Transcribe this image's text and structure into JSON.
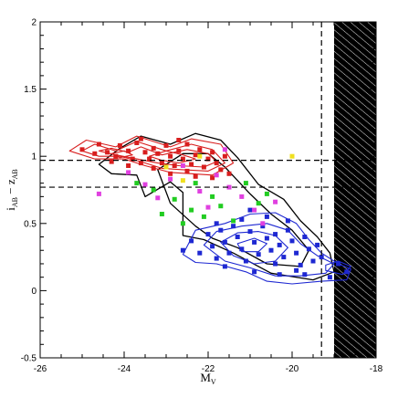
{
  "chart_data": {
    "type": "scatter",
    "title": "",
    "xlabel_main": "M",
    "xlabel_sub": "V",
    "ylabel_parts": [
      "i",
      "AB",
      " − z",
      "AB"
    ],
    "xlim": [
      -26,
      -18
    ],
    "ylim": [
      -0.5,
      2
    ],
    "x_ticks": [
      -26,
      -24,
      -22,
      -20,
      -18
    ],
    "y_ticks": [
      -0.5,
      0,
      0.5,
      1,
      1.5,
      2
    ],
    "x_tick_labels": [
      "-26",
      "-24",
      "-22",
      "-20",
      "-18"
    ],
    "y_tick_labels": [
      "-0.5",
      "0",
      "0.5",
      "1",
      "1.5",
      "2"
    ],
    "grid": false,
    "reference_lines": {
      "horizontal_dashed_y": [
        0.97,
        0.77
      ],
      "vertical_dashed_x": -19.3
    },
    "hatched_region": {
      "x_from": -19.0,
      "x_to": -18.0,
      "style": "black with white diagonal hatching"
    },
    "colors": {
      "red": "#d81e1e",
      "blue": "#1e28d2",
      "black": "#000000",
      "magenta": "#e040e0",
      "green": "#22cc22",
      "yellow": "#f0e020"
    },
    "contours": [
      {
        "group": "black",
        "level": 1,
        "points": [
          [
            -24.3,
            0.87
          ],
          [
            -24.6,
            0.94
          ],
          [
            -24.1,
            1.06
          ],
          [
            -23.6,
            1.15
          ],
          [
            -22.9,
            1.09
          ],
          [
            -22.3,
            1.17
          ],
          [
            -21.7,
            1.12
          ],
          [
            -21.3,
            0.99
          ],
          [
            -20.8,
            0.79
          ],
          [
            -20.2,
            0.68
          ],
          [
            -19.8,
            0.52
          ],
          [
            -19.4,
            0.4
          ],
          [
            -19.1,
            0.28
          ],
          [
            -19.0,
            0.14
          ],
          [
            -19.5,
            0.08
          ],
          [
            -20.5,
            0.13
          ],
          [
            -21.4,
            0.28
          ],
          [
            -22.1,
            0.38
          ],
          [
            -22.6,
            0.41
          ],
          [
            -22.6,
            0.73
          ],
          [
            -22.9,
            0.81
          ],
          [
            -23.5,
            0.7
          ],
          [
            -23.7,
            0.86
          ],
          [
            -24.3,
            0.87
          ]
        ]
      },
      {
        "group": "black",
        "level": 2,
        "points": [
          [
            -22.9,
            0.65
          ],
          [
            -23.2,
            0.9
          ],
          [
            -22.6,
            1.02
          ],
          [
            -22.0,
            1.02
          ],
          [
            -21.6,
            0.92
          ],
          [
            -21.0,
            0.72
          ],
          [
            -20.5,
            0.57
          ],
          [
            -20.0,
            0.45
          ],
          [
            -19.6,
            0.3
          ],
          [
            -19.8,
            0.18
          ],
          [
            -20.6,
            0.2
          ],
          [
            -21.3,
            0.32
          ],
          [
            -21.9,
            0.39
          ],
          [
            -22.3,
            0.48
          ],
          [
            -22.9,
            0.65
          ]
        ]
      },
      {
        "group": "red",
        "level": 1,
        "points": [
          [
            -25.3,
            1.04
          ],
          [
            -24.9,
            1.12
          ],
          [
            -24.2,
            1.07
          ],
          [
            -23.7,
            1.15
          ],
          [
            -22.9,
            1.07
          ],
          [
            -22.4,
            1.13
          ],
          [
            -21.7,
            1.09
          ],
          [
            -21.4,
            0.95
          ],
          [
            -21.9,
            0.86
          ],
          [
            -22.4,
            0.87
          ],
          [
            -22.9,
            0.88
          ],
          [
            -23.5,
            0.93
          ],
          [
            -24.0,
            0.98
          ],
          [
            -24.7,
            0.98
          ],
          [
            -25.3,
            1.04
          ]
        ]
      },
      {
        "group": "red",
        "level": 2,
        "points": [
          [
            -25.0,
            1.04
          ],
          [
            -24.7,
            1.09
          ],
          [
            -24.2,
            1.04
          ],
          [
            -23.7,
            1.11
          ],
          [
            -23.0,
            1.04
          ],
          [
            -22.4,
            1.09
          ],
          [
            -21.9,
            1.05
          ],
          [
            -21.6,
            0.95
          ],
          [
            -22.0,
            0.89
          ],
          [
            -22.6,
            0.9
          ],
          [
            -23.1,
            0.91
          ],
          [
            -23.6,
            0.96
          ],
          [
            -24.1,
            1.0
          ],
          [
            -24.6,
            1.0
          ],
          [
            -25.0,
            1.04
          ]
        ]
      },
      {
        "group": "red",
        "level": 3,
        "points": [
          [
            -24.6,
            1.04
          ],
          [
            -24.3,
            1.06
          ],
          [
            -23.9,
            1.03
          ],
          [
            -23.6,
            1.07
          ],
          [
            -23.1,
            1.01
          ],
          [
            -22.5,
            1.05
          ],
          [
            -22.0,
            1.02
          ],
          [
            -21.8,
            0.96
          ],
          [
            -22.1,
            0.92
          ],
          [
            -22.7,
            0.93
          ],
          [
            -23.2,
            0.95
          ],
          [
            -23.7,
            0.98
          ],
          [
            -24.2,
            1.01
          ],
          [
            -24.6,
            1.04
          ]
        ]
      },
      {
        "group": "red",
        "level": 4,
        "points": [
          [
            -23.4,
            1.0
          ],
          [
            -23.0,
            1.04
          ],
          [
            -22.6,
            1.01
          ],
          [
            -22.3,
            0.98
          ],
          [
            -22.7,
            0.95
          ],
          [
            -23.1,
            0.97
          ],
          [
            -23.4,
            1.0
          ]
        ]
      },
      {
        "group": "red",
        "level": 5,
        "points": [
          [
            -24.3,
            1.02
          ],
          [
            -24.0,
            1.04
          ],
          [
            -23.8,
            1.01
          ],
          [
            -24.1,
            0.99
          ],
          [
            -24.3,
            1.02
          ]
        ]
      },
      {
        "group": "blue",
        "level": 1,
        "points": [
          [
            -22.6,
            0.27
          ],
          [
            -22.3,
            0.45
          ],
          [
            -21.6,
            0.5
          ],
          [
            -21.0,
            0.57
          ],
          [
            -20.4,
            0.58
          ],
          [
            -19.9,
            0.5
          ],
          [
            -19.6,
            0.38
          ],
          [
            -19.3,
            0.28
          ],
          [
            -18.9,
            0.2
          ],
          [
            -18.6,
            0.16
          ],
          [
            -18.7,
            0.08
          ],
          [
            -19.3,
            0.07
          ],
          [
            -20.0,
            0.05
          ],
          [
            -20.6,
            0.07
          ],
          [
            -21.1,
            0.14
          ],
          [
            -21.8,
            0.2
          ],
          [
            -22.3,
            0.21
          ],
          [
            -22.6,
            0.27
          ]
        ]
      },
      {
        "group": "blue",
        "level": 2,
        "points": [
          [
            -22.1,
            0.34
          ],
          [
            -21.8,
            0.44
          ],
          [
            -21.2,
            0.48
          ],
          [
            -20.6,
            0.5
          ],
          [
            -20.1,
            0.45
          ],
          [
            -19.8,
            0.35
          ],
          [
            -19.4,
            0.26
          ],
          [
            -19.0,
            0.2
          ],
          [
            -19.2,
            0.13
          ],
          [
            -19.8,
            0.11
          ],
          [
            -20.4,
            0.11
          ],
          [
            -21.0,
            0.17
          ],
          [
            -21.6,
            0.22
          ],
          [
            -22.1,
            0.34
          ]
        ]
      },
      {
        "group": "blue",
        "level": 3,
        "points": [
          [
            -21.7,
            0.36
          ],
          [
            -21.3,
            0.43
          ],
          [
            -20.8,
            0.44
          ],
          [
            -20.4,
            0.41
          ],
          [
            -20.1,
            0.32
          ],
          [
            -20.4,
            0.22
          ],
          [
            -20.9,
            0.2
          ],
          [
            -21.4,
            0.26
          ],
          [
            -21.7,
            0.36
          ]
        ]
      },
      {
        "group": "blue",
        "level": 4,
        "points": [
          [
            -21.3,
            0.35
          ],
          [
            -20.9,
            0.39
          ],
          [
            -20.6,
            0.35
          ],
          [
            -20.8,
            0.29
          ],
          [
            -21.2,
            0.29
          ],
          [
            -21.3,
            0.35
          ]
        ]
      },
      {
        "group": "blue",
        "level": 5,
        "points": [
          [
            -19.2,
            0.19
          ],
          [
            -18.9,
            0.22
          ],
          [
            -18.6,
            0.18
          ],
          [
            -18.8,
            0.12
          ],
          [
            -19.2,
            0.15
          ],
          [
            -19.2,
            0.19
          ]
        ]
      }
    ],
    "series": [
      {
        "color": "red",
        "points": [
          [
            -25.0,
            1.05
          ],
          [
            -24.7,
            1.02
          ],
          [
            -24.6,
            1.09
          ],
          [
            -24.4,
            1.03
          ],
          [
            -24.2,
            1.0
          ],
          [
            -24.1,
            1.08
          ],
          [
            -23.9,
            1.04
          ],
          [
            -23.8,
            0.98
          ],
          [
            -23.7,
            1.1
          ],
          [
            -23.6,
            0.95
          ],
          [
            -23.5,
            1.03
          ],
          [
            -23.4,
            0.98
          ],
          [
            -23.3,
            1.06
          ],
          [
            -23.2,
            1.02
          ],
          [
            -23.1,
            0.95
          ],
          [
            -23.0,
            1.08
          ],
          [
            -22.9,
            1.0
          ],
          [
            -22.8,
            0.93
          ],
          [
            -22.7,
            1.04
          ],
          [
            -22.6,
            0.98
          ],
          [
            -22.5,
            1.09
          ],
          [
            -22.4,
            0.94
          ],
          [
            -22.3,
            1.01
          ],
          [
            -22.2,
            1.05
          ],
          [
            -22.1,
            0.92
          ],
          [
            -22.0,
            0.98
          ],
          [
            -21.9,
            1.03
          ],
          [
            -21.8,
            0.95
          ],
          [
            -21.7,
            0.9
          ],
          [
            -21.6,
            1.0
          ],
          [
            -21.5,
            0.87
          ],
          [
            -23.3,
            0.91
          ],
          [
            -23.9,
            0.93
          ],
          [
            -22.9,
            0.87
          ],
          [
            -22.3,
            0.85
          ],
          [
            -21.9,
            0.84
          ],
          [
            -24.3,
            0.96
          ],
          [
            -22.7,
            1.12
          ],
          [
            -23.6,
            1.13
          ],
          [
            -22.5,
            0.89
          ]
        ]
      },
      {
        "color": "blue",
        "points": [
          [
            -22.4,
            0.37
          ],
          [
            -22.2,
            0.28
          ],
          [
            -22.0,
            0.42
          ],
          [
            -21.9,
            0.33
          ],
          [
            -21.8,
            0.24
          ],
          [
            -21.7,
            0.45
          ],
          [
            -21.6,
            0.36
          ],
          [
            -21.5,
            0.28
          ],
          [
            -21.4,
            0.48
          ],
          [
            -21.3,
            0.4
          ],
          [
            -21.2,
            0.31
          ],
          [
            -21.1,
            0.22
          ],
          [
            -21.0,
            0.44
          ],
          [
            -20.9,
            0.36
          ],
          [
            -20.8,
            0.27
          ],
          [
            -20.7,
            0.48
          ],
          [
            -20.6,
            0.39
          ],
          [
            -20.5,
            0.3
          ],
          [
            -20.4,
            0.42
          ],
          [
            -20.3,
            0.34
          ],
          [
            -20.2,
            0.25
          ],
          [
            -20.1,
            0.45
          ],
          [
            -20.0,
            0.37
          ],
          [
            -19.9,
            0.28
          ],
          [
            -19.8,
            0.19
          ],
          [
            -19.7,
            0.4
          ],
          [
            -19.6,
            0.31
          ],
          [
            -19.5,
            0.22
          ],
          [
            -19.4,
            0.34
          ],
          [
            -19.3,
            0.25
          ],
          [
            -21.8,
            0.5
          ],
          [
            -21.2,
            0.53
          ],
          [
            -20.6,
            0.55
          ],
          [
            -20.1,
            0.52
          ],
          [
            -21.6,
            0.18
          ],
          [
            -20.9,
            0.14
          ],
          [
            -20.3,
            0.12
          ],
          [
            -19.7,
            0.12
          ],
          [
            -18.9,
            0.2
          ],
          [
            -18.7,
            0.14
          ],
          [
            -19.1,
            0.1
          ],
          [
            -22.6,
            0.3
          ],
          [
            -21.0,
            0.6
          ],
          [
            -20.4,
            0.2
          ],
          [
            -19.9,
            0.15
          ]
        ]
      },
      {
        "color": "magenta",
        "points": [
          [
            -23.9,
            0.88
          ],
          [
            -23.5,
            0.79
          ],
          [
            -22.9,
            0.83
          ],
          [
            -22.6,
            0.93
          ],
          [
            -22.2,
            0.74
          ],
          [
            -21.8,
            0.86
          ],
          [
            -21.5,
            0.77
          ],
          [
            -21.2,
            0.7
          ],
          [
            -20.9,
            0.6
          ],
          [
            -20.7,
            0.5
          ],
          [
            -24.6,
            0.72
          ],
          [
            -21.6,
            1.05
          ],
          [
            -22.0,
            0.62
          ],
          [
            -20.4,
            0.66
          ],
          [
            -23.2,
            0.69
          ]
        ]
      },
      {
        "color": "green",
        "points": [
          [
            -23.7,
            0.8
          ],
          [
            -23.3,
            0.75
          ],
          [
            -22.8,
            0.68
          ],
          [
            -22.4,
            0.6
          ],
          [
            -22.1,
            0.55
          ],
          [
            -21.7,
            0.63
          ],
          [
            -21.4,
            0.52
          ],
          [
            -21.1,
            0.8
          ],
          [
            -20.8,
            0.65
          ],
          [
            -20.6,
            0.72
          ],
          [
            -23.1,
            0.57
          ],
          [
            -22.6,
            0.5
          ],
          [
            -21.9,
            0.7
          ],
          [
            -22.3,
            0.8
          ]
        ]
      },
      {
        "color": "yellow",
        "points": [
          [
            -23.0,
            0.92
          ],
          [
            -22.2,
            1.0
          ],
          [
            -20.0,
            1.0
          ],
          [
            -22.6,
            0.82
          ]
        ]
      }
    ]
  }
}
